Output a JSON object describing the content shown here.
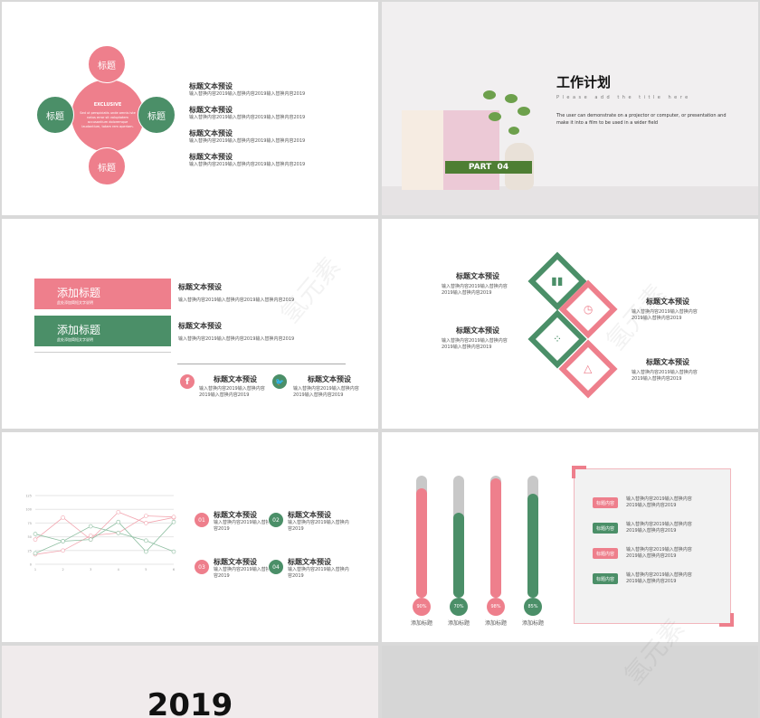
{
  "colors": {
    "pink": "#ee7f8c",
    "green": "#4b8f68",
    "part_green": "#4e7e33"
  },
  "slide1": {
    "center_title": "EXCLUSIVE",
    "center_text": "Sed ut perspiciatis unde omnis iste natus error sit voluptatem accusantium doloremque laudantium, totam rem aperiam.",
    "circles": [
      "标题",
      "标题",
      "标题",
      "标题"
    ],
    "items": [
      {
        "title": "标题文本预设",
        "text": "输入替换内容2019输入替换内容2019输入替换内容2019"
      },
      {
        "title": "标题文本预设",
        "text": "输入替换内容2019输入替换内容2019输入替换内容2019"
      },
      {
        "title": "标题文本预设",
        "text": "输入替换内容2019输入替换内容2019输入替换内容2019"
      },
      {
        "title": "标题文本预设",
        "text": "输入替换内容2019输入替换内容2019输入替换内容2019"
      }
    ]
  },
  "slide2": {
    "title": "工作计划",
    "subtitle": "Please add the title here",
    "body": "The user can demonstrate on a projector or computer, or presentation and make it into a film to be used in a wider field",
    "part": "PART  04"
  },
  "slide3": {
    "bars": [
      {
        "title": "添加标题",
        "sub": "此处添加简短文字说明"
      },
      {
        "title": "添加标题",
        "sub": "此处添加简短文字说明"
      }
    ],
    "items": [
      {
        "title": "标题文本预设",
        "text": "输入替换内容2019输入替换内容2019输入替换内容2019"
      },
      {
        "title": "标题文本预设",
        "text": "输入替换内容2019输入替换内容2019输入替换内容2019"
      }
    ],
    "social": [
      {
        "icon": "facebook-icon",
        "glyph": "f",
        "title": "标题文本预设",
        "text": "输入替换内容2019输入替换内容2019输入替换内容2019"
      },
      {
        "icon": "twitter-icon",
        "glyph": "🐦",
        "title": "标题文本预设",
        "text": "输入替换内容2019输入替换内容2019输入替换内容2019"
      }
    ]
  },
  "slide4": {
    "items": [
      {
        "title": "标题文本预设",
        "text": "输入替换内容2019输入替换内容2019输入替换内容2019"
      },
      {
        "title": "标题文本预设",
        "text": "输入替换内容2019输入替换内容2019输入替换内容2019"
      },
      {
        "title": "标题文本预设",
        "text": "输入替换内容2019输入替换内容2019输入替换内容2019"
      },
      {
        "title": "标题文本预设",
        "text": "输入替换内容2019输入替换内容2019输入替换内容2019"
      }
    ],
    "icons": [
      "bar-growth-icon",
      "history-clock-icon",
      "scatter-chart-icon",
      "triangle-icon"
    ]
  },
  "slide5": {
    "items": [
      {
        "num": "01",
        "title": "标题文本预设",
        "text": "输入替换内容2019输入替换内容2019"
      },
      {
        "num": "02",
        "title": "标题文本预设",
        "text": "输入替换内容2019输入替换内容2019"
      },
      {
        "num": "03",
        "title": "标题文本预设",
        "text": "输入替换内容2019输入替换内容2019"
      },
      {
        "num": "04",
        "title": "标题文本预设",
        "text": "输入替换内容2019输入替换内容2019"
      }
    ]
  },
  "chart_data": {
    "type": "line",
    "x": [
      1,
      2,
      3,
      4,
      5,
      6
    ],
    "ylim": [
      0,
      125
    ],
    "yticks": [
      "0",
      "25",
      "50",
      "75",
      "100",
      "125"
    ],
    "xticks": [
      "1",
      "2",
      "3",
      "4",
      "5",
      "6"
    ],
    "grid": true,
    "series": [
      {
        "color": "#f2a6b0",
        "values": [
          45,
          85,
          45,
          95,
          75,
          85
        ]
      },
      {
        "color": "#f2a6b0",
        "values": [
          18,
          25,
          52,
          57,
          88,
          86
        ]
      },
      {
        "color": "#8fbfa2",
        "values": [
          55,
          42,
          69,
          57,
          43,
          23
        ]
      },
      {
        "color": "#8fbfa2",
        "values": [
          20,
          42,
          45,
          77,
          23,
          77
        ]
      }
    ]
  },
  "slide6": {
    "tubes": [
      {
        "pct": 90,
        "label": "90%",
        "name": "添加标题",
        "color": "pink"
      },
      {
        "pct": 70,
        "label": "70%",
        "name": "添加标题",
        "color": "green"
      },
      {
        "pct": 98,
        "label": "98%",
        "name": "添加标题",
        "color": "pink"
      },
      {
        "pct": 85,
        "label": "85%",
        "name": "添加标题",
        "color": "green"
      }
    ],
    "rows": [
      {
        "tag": "标题内容",
        "color": "pink",
        "text": "输入替换内容2019输入替换内容2019输入替换内容2019"
      },
      {
        "tag": "标题内容",
        "color": "green",
        "text": "输入替换内容2019输入替换内容2019输入替换内容2019"
      },
      {
        "tag": "标题内容",
        "color": "pink",
        "text": "输入替换内容2019输入替换内容2019输入替换内容2019"
      },
      {
        "tag": "标题内容",
        "color": "green",
        "text": "输入替换内容2019输入替换内容2019输入替换内容2019"
      }
    ]
  },
  "slide7": {
    "year": "2019"
  },
  "watermark": "氢元素"
}
